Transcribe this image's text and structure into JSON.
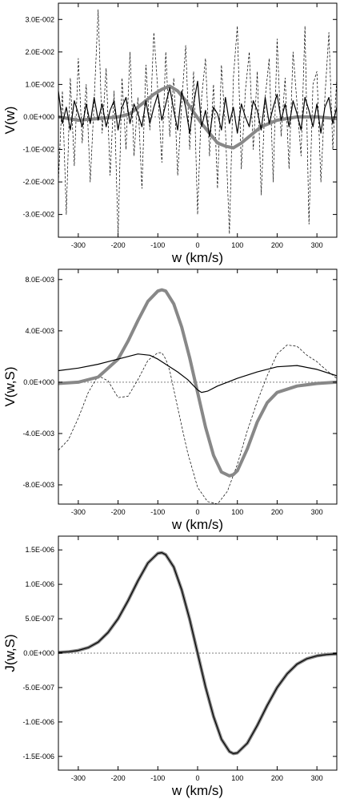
{
  "chart_data": [
    {
      "type": "line",
      "ylabel": "V(w)",
      "xlabel": "w (km/s)",
      "xlim": [
        -350,
        350
      ],
      "ylim": [
        -0.037,
        0.035
      ],
      "x_ticks": [
        -300,
        -200,
        -100,
        0,
        100,
        200,
        300
      ],
      "x_tick_labels": [
        "-300",
        "-200",
        "-100",
        "0",
        "100",
        "200",
        "300"
      ],
      "y_ticks": [
        -0.03,
        -0.02,
        -0.01,
        0,
        0.01,
        0.02,
        0.03
      ],
      "y_tick_labels": [
        "-3.0E-002",
        "-2.0E-002",
        "-1.0E-002",
        "0.0E+000",
        "1.0E-002",
        "2.0E-002",
        "3.0E-002"
      ],
      "series": [
        {
          "style": "thick-gray",
          "x": [
            -350,
            -300,
            -250,
            -200,
            -170,
            -140,
            -110,
            -90,
            -70,
            -50,
            -30,
            -10,
            10,
            30,
            50,
            70,
            90,
            110,
            130,
            160,
            200,
            250,
            300,
            350
          ],
          "values": [
            0.0,
            -0.001,
            -0.0005,
            0.0,
            0.001,
            0.004,
            0.007,
            0.0085,
            0.0095,
            0.008,
            0.005,
            0.0015,
            -0.002,
            -0.005,
            -0.008,
            -0.009,
            -0.0095,
            -0.008,
            -0.006,
            -0.003,
            -0.001,
            0.0,
            0.0,
            -0.0005
          ]
        },
        {
          "style": "solid-black",
          "x": [
            -350,
            -340,
            -330,
            -320,
            -310,
            -300,
            -290,
            -280,
            -270,
            -260,
            -250,
            -240,
            -230,
            -220,
            -210,
            -200,
            -190,
            -180,
            -170,
            -160,
            -150,
            -140,
            -130,
            -120,
            -110,
            -100,
            -90,
            -80,
            -70,
            -60,
            -50,
            -40,
            -30,
            -20,
            -10,
            0,
            10,
            20,
            30,
            40,
            50,
            60,
            70,
            80,
            90,
            100,
            110,
            120,
            130,
            140,
            150,
            160,
            170,
            180,
            190,
            200,
            210,
            220,
            230,
            240,
            250,
            260,
            270,
            280,
            290,
            300,
            310,
            320,
            330,
            340,
            350
          ],
          "values": [
            0.008,
            -0.002,
            0.003,
            -0.004,
            0.005,
            0.001,
            -0.003,
            0.004,
            -0.002,
            0.006,
            -0.001,
            0.004,
            -0.003,
            0.002,
            0.005,
            -0.004,
            0.003,
            0.006,
            -0.002,
            0.004,
            0.001,
            -0.003,
            0.005,
            -0.002,
            0.003,
            0.007,
            -0.001,
            0.004,
            0.009,
            0.002,
            -0.004,
            0.008,
            0.003,
            -0.005,
            0.004,
            0.011,
            -0.003,
            0.002,
            -0.006,
            0.003,
            0.001,
            -0.004,
            0.006,
            -0.002,
            0.003,
            -0.005,
            0.004,
            0.0,
            -0.003,
            0.005,
            0.002,
            -0.004,
            0.006,
            -0.002,
            0.003,
            0.007,
            -0.001,
            0.004,
            -0.003,
            0.005,
            0.001,
            -0.004,
            0.006,
            0.002,
            -0.003,
            0.004,
            -0.005,
            0.003,
            0.006,
            -0.002,
            0.003
          ]
        },
        {
          "style": "dashed",
          "x": [
            -350,
            -340,
            -330,
            -320,
            -310,
            -300,
            -290,
            -280,
            -270,
            -260,
            -250,
            -240,
            -230,
            -220,
            -210,
            -200,
            -190,
            -180,
            -170,
            -160,
            -150,
            -140,
            -130,
            -120,
            -110,
            -100,
            -90,
            -80,
            -70,
            -60,
            -50,
            -40,
            -30,
            -20,
            -10,
            0,
            10,
            20,
            30,
            40,
            50,
            60,
            70,
            80,
            90,
            100,
            110,
            120,
            130,
            140,
            150,
            160,
            170,
            180,
            190,
            200,
            210,
            220,
            230,
            240,
            250,
            260,
            270,
            280,
            290,
            300,
            310,
            320,
            330,
            340,
            350
          ],
          "values": [
            -0.02,
            0.008,
            -0.03,
            0.012,
            -0.015,
            0.018,
            -0.008,
            0.01,
            -0.02,
            0.005,
            0.033,
            -0.005,
            0.015,
            -0.018,
            0.008,
            -0.037,
            0.012,
            -0.01,
            0.02,
            -0.012,
            0.006,
            -0.022,
            0.016,
            -0.004,
            0.026,
            0.008,
            -0.014,
            0.02,
            -0.006,
            0.012,
            -0.018,
            0.004,
            0.022,
            -0.01,
            0.014,
            -0.03,
            0.006,
            0.018,
            -0.012,
            0.01,
            -0.022,
            0.016,
            -0.004,
            -0.036,
            0.012,
            0.028,
            -0.016,
            0.008,
            0.02,
            -0.01,
            0.014,
            -0.024,
            0.006,
            0.018,
            -0.02,
            0.024,
            -0.006,
            0.012,
            -0.016,
            0.02,
            0.004,
            -0.012,
            0.028,
            -0.033,
            0.01,
            0.014,
            -0.02,
            0.006,
            0.026,
            -0.01,
            0.012
          ]
        },
        {
          "style": "dotted-gray",
          "x": [
            -350,
            350
          ],
          "values": [
            0,
            0
          ]
        }
      ]
    },
    {
      "type": "line",
      "ylabel": "V(w,S)",
      "xlabel": "w (km/s)",
      "xlim": [
        -350,
        350
      ],
      "ylim": [
        -0.0095,
        0.0088
      ],
      "x_ticks": [
        -300,
        -200,
        -100,
        0,
        100,
        200,
        300
      ],
      "x_tick_labels": [
        "-300",
        "-200",
        "-100",
        "0",
        "100",
        "200",
        "300"
      ],
      "y_ticks": [
        -0.008,
        -0.004,
        0,
        0.004,
        0.008
      ],
      "y_tick_labels": [
        "-8.0E-003",
        "-4.0E-003",
        "0.0E+000",
        "4.0E-003",
        "8.0E-003"
      ],
      "series": [
        {
          "style": "thick-gray",
          "x": [
            -350,
            -300,
            -250,
            -200,
            -175,
            -150,
            -125,
            -100,
            -90,
            -80,
            -60,
            -40,
            -20,
            0,
            20,
            40,
            60,
            80,
            90,
            100,
            125,
            150,
            175,
            200,
            250,
            300,
            350
          ],
          "values": [
            -0.0001,
            0.0,
            0.0004,
            0.0018,
            0.0032,
            0.0048,
            0.0063,
            0.0071,
            0.0072,
            0.0071,
            0.0061,
            0.0043,
            0.0019,
            -0.0008,
            -0.0035,
            -0.0057,
            -0.007,
            -0.0073,
            -0.0072,
            -0.0069,
            -0.0052,
            -0.0031,
            -0.0016,
            -0.0008,
            -0.0003,
            -0.0001,
            0.0
          ]
        },
        {
          "style": "solid-black",
          "x": [
            -350,
            -300,
            -250,
            -200,
            -150,
            -120,
            -100,
            -75,
            -50,
            -25,
            0,
            10,
            25,
            50,
            75,
            100,
            150,
            200,
            250,
            300,
            350
          ],
          "values": [
            0.0009,
            0.0011,
            0.0014,
            0.0018,
            0.0022,
            0.0021,
            0.0018,
            0.0013,
            0.0008,
            0.0002,
            -0.0006,
            -0.0008,
            -0.0007,
            -0.0003,
            0.0,
            0.0003,
            0.0008,
            0.0012,
            0.0013,
            0.001,
            0.0005
          ]
        },
        {
          "style": "dashed",
          "x": [
            -350,
            -325,
            -300,
            -275,
            -250,
            -225,
            -200,
            -175,
            -150,
            -125,
            -100,
            -90,
            -80,
            -70,
            -50,
            -25,
            0,
            25,
            50,
            75,
            100,
            125,
            150,
            175,
            200,
            225,
            250,
            275,
            300,
            325,
            350
          ],
          "values": [
            -0.0053,
            -0.0045,
            -0.0028,
            -0.0008,
            0.0005,
            0.0001,
            -0.0012,
            -0.0011,
            0.0002,
            0.0017,
            0.0023,
            0.0023,
            0.0018,
            0.0009,
            -0.002,
            -0.0055,
            -0.0082,
            -0.0093,
            -0.0095,
            -0.0085,
            -0.0064,
            -0.0038,
            -0.0015,
            0.0005,
            0.0022,
            0.0029,
            0.0028,
            0.0021,
            0.0016,
            0.0009,
            0.0003
          ]
        },
        {
          "style": "dotted-gray",
          "x": [
            -350,
            350
          ],
          "values": [
            0,
            0
          ]
        }
      ]
    },
    {
      "type": "line",
      "ylabel": "J(w,S)",
      "xlabel": "w (km/s)",
      "xlim": [
        -350,
        350
      ],
      "ylim": [
        -1.7e-06,
        1.7e-06
      ],
      "x_ticks": [
        -300,
        -200,
        -100,
        0,
        100,
        200,
        300
      ],
      "x_tick_labels": [
        "-300",
        "-200",
        "-100",
        "0",
        "100",
        "200",
        "300"
      ],
      "y_ticks": [
        -1.5e-06,
        -1e-06,
        -5e-07,
        0,
        5e-07,
        1e-06,
        1.5e-06
      ],
      "y_tick_labels": [
        "-1.5E-006",
        "-1.0E-006",
        "-5.0E-007",
        "0.0E+000",
        "5.0E-007",
        "1.0E-006",
        "1.5E-006"
      ],
      "series": [
        {
          "style": "thick-gray",
          "x": [
            -350,
            -325,
            -300,
            -275,
            -250,
            -225,
            -200,
            -175,
            -150,
            -125,
            -100,
            -90,
            -80,
            -60,
            -40,
            -20,
            0,
            20,
            40,
            60,
            80,
            90,
            100,
            125,
            150,
            175,
            200,
            225,
            250,
            275,
            300,
            325,
            350
          ],
          "values": [
            1e-08,
            2e-08,
            4e-08,
            8e-08,
            1.6e-07,
            3e-07,
            5e-07,
            7.6e-07,
            1.05e-06,
            1.31e-06,
            1.45e-06,
            1.46e-06,
            1.43e-06,
            1.25e-06,
            9.2e-07,
            4.9e-07,
            0.0,
            -4.9e-07,
            -9.2e-07,
            -1.25e-06,
            -1.43e-06,
            -1.46e-06,
            -1.45e-06,
            -1.31e-06,
            -1.05e-06,
            -7.6e-07,
            -5e-07,
            -3e-07,
            -1.6e-07,
            -8e-08,
            -4e-08,
            -2e-08,
            -1e-08
          ]
        },
        {
          "style": "solid-black",
          "x": [
            -350,
            -325,
            -300,
            -275,
            -250,
            -225,
            -200,
            -175,
            -150,
            -125,
            -100,
            -90,
            -80,
            -60,
            -40,
            -20,
            0,
            20,
            40,
            60,
            80,
            90,
            100,
            125,
            150,
            175,
            200,
            225,
            250,
            275,
            300,
            325,
            350
          ],
          "values": [
            1e-08,
            2e-08,
            4e-08,
            8e-08,
            1.6e-07,
            3e-07,
            5e-07,
            7.6e-07,
            1.05e-06,
            1.31e-06,
            1.45e-06,
            1.46e-06,
            1.43e-06,
            1.25e-06,
            9.2e-07,
            4.9e-07,
            0.0,
            -4.9e-07,
            -9.2e-07,
            -1.25e-06,
            -1.43e-06,
            -1.46e-06,
            -1.45e-06,
            -1.31e-06,
            -1.05e-06,
            -7.6e-07,
            -5e-07,
            -3e-07,
            -1.6e-07,
            -8e-08,
            -4e-08,
            -2e-08,
            -1e-08
          ]
        },
        {
          "style": "dotted-gray",
          "x": [
            -350,
            350
          ],
          "values": [
            0,
            0
          ]
        }
      ]
    }
  ]
}
